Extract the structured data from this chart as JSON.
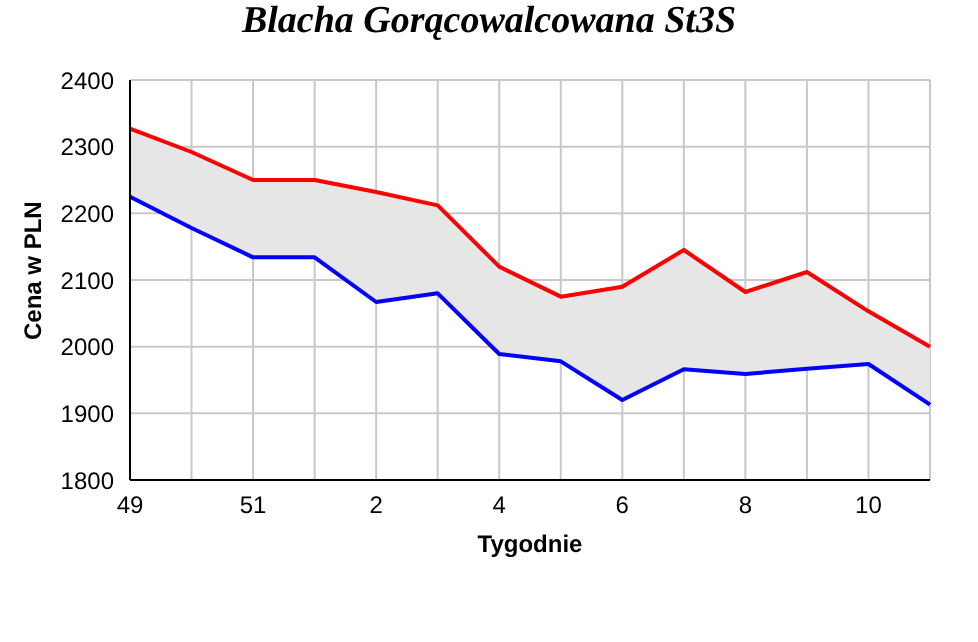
{
  "chart_data": {
    "type": "line",
    "title": "Blacha Gorącowalcowana St3S",
    "xlabel": "Tygodnie",
    "ylabel": "Cena w PLN",
    "categories": [
      "49",
      null,
      "51",
      null,
      "2",
      null,
      "4",
      null,
      "6",
      null,
      "8",
      null,
      "10",
      null
    ],
    "series": [
      {
        "color": "#ff0000",
        "values": [
          2327,
          2292,
          2250,
          2250,
          2232,
          2212,
          2120,
          2075,
          2090,
          2145,
          2082,
          2112,
          2053,
          2000
        ],
        "lower": [
          2225,
          2178,
          2134,
          2134,
          2067,
          2080,
          1989,
          1978,
          1920,
          1966,
          1959,
          1967,
          1974,
          1913
        ],
        "upper": [
          2327,
          2292,
          2250,
          2250,
          2232,
          2212,
          2120,
          2075,
          2090,
          2145,
          2082,
          2112,
          2053,
          2000
        ]
      },
      {
        "color": "#0000ff",
        "values": [
          2225,
          2178,
          2134,
          2134,
          2067,
          2080,
          1989,
          1978,
          1920,
          1966,
          1959,
          1967,
          1974,
          1913
        ]
      }
    ],
    "ylim": [
      1800,
      2400
    ],
    "yticks": [
      1800,
      1900,
      2000,
      2100,
      2200,
      2300,
      2400
    ],
    "grid": true,
    "marker": "none",
    "line_style": "solid"
  }
}
